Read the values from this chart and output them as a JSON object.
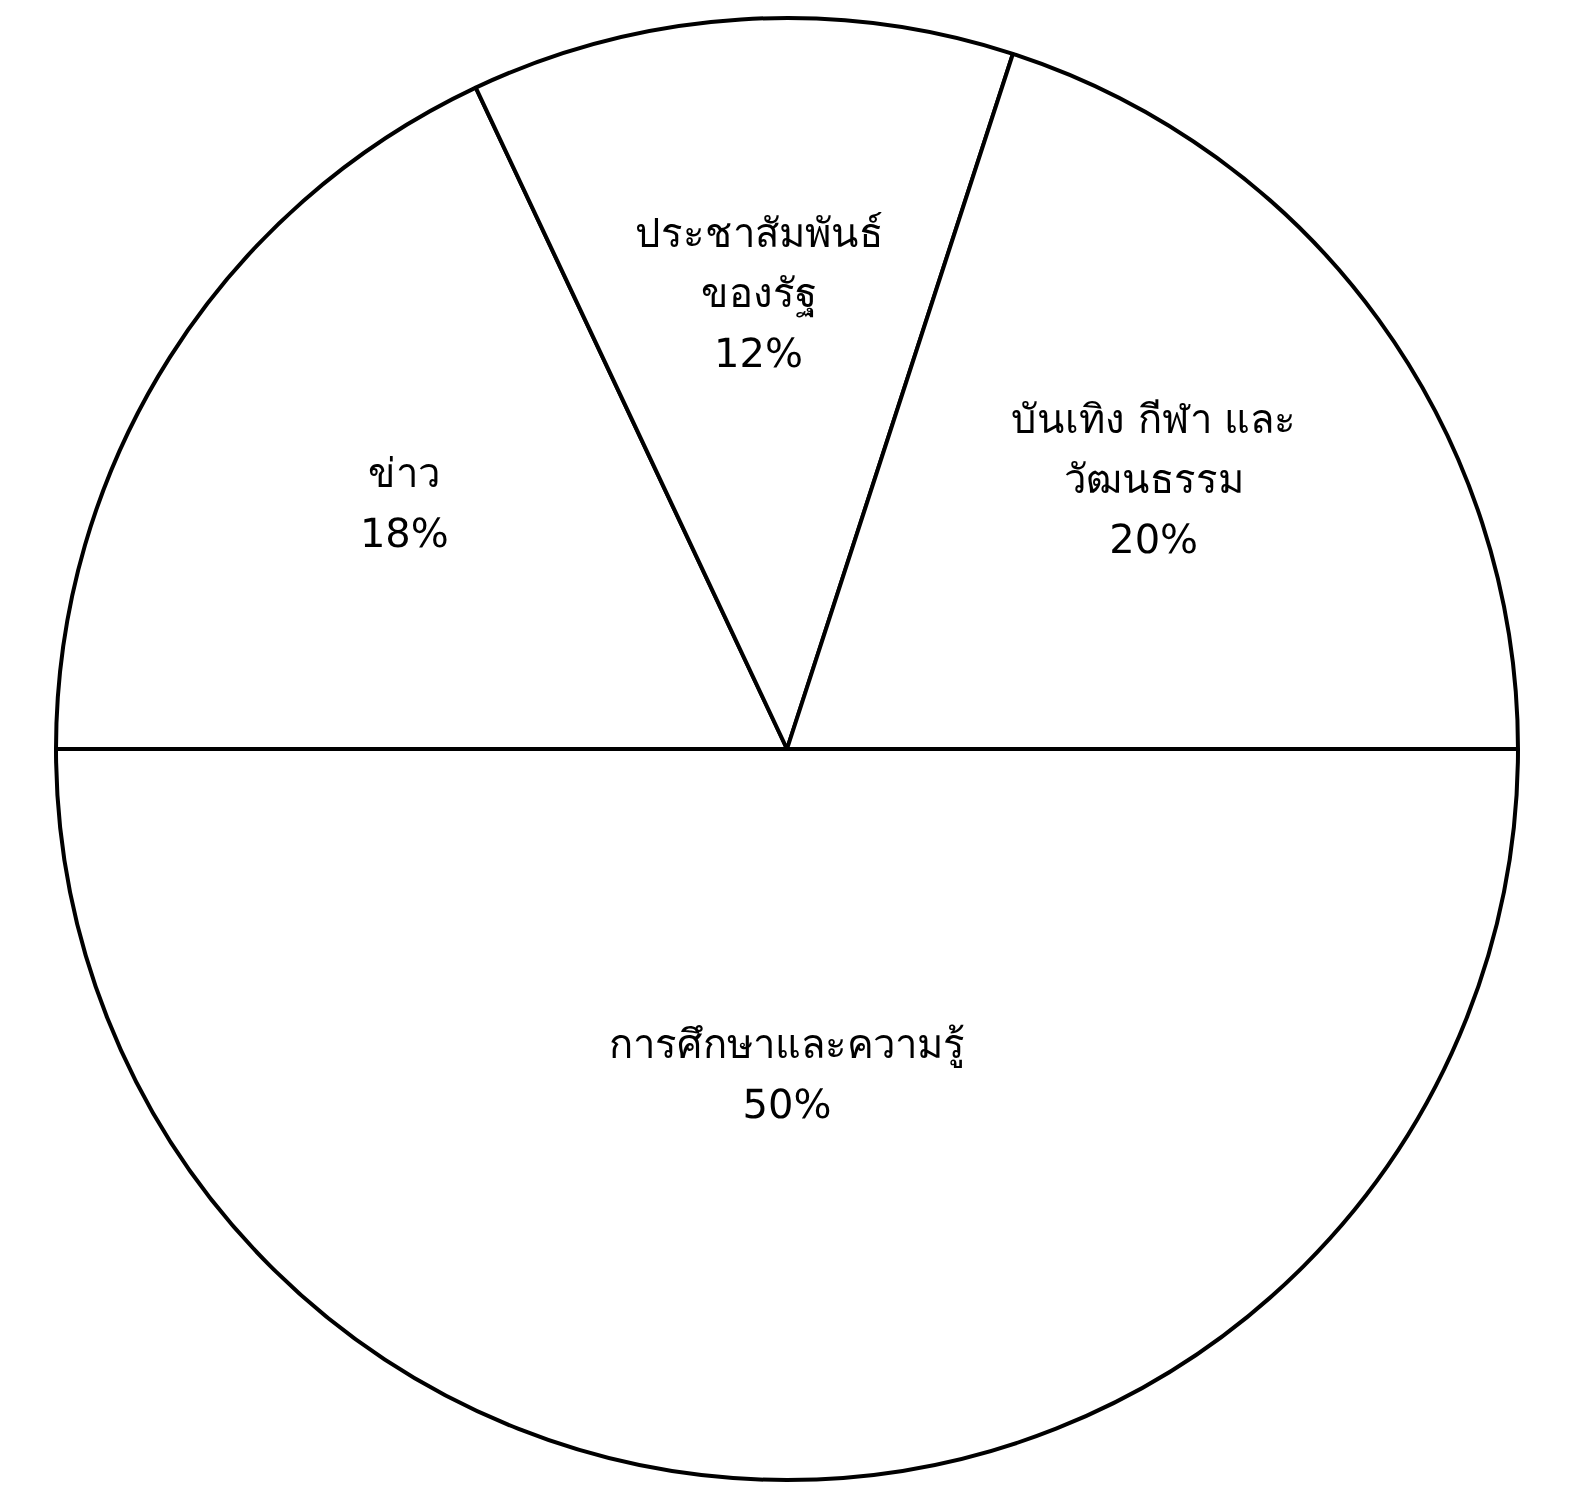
{
  "chart_data": {
    "type": "pie",
    "categories": [
      "การศึกษาและความรู้",
      "ข่าว",
      "ประชาสัมพันธ์ของรัฐ",
      "บันเทิง กีฬา และ วัฒนธรรม"
    ],
    "values": [
      50,
      18,
      12,
      20
    ],
    "colors": [
      "#ffffff",
      "#ffffff",
      "#ffffff",
      "#ffffff"
    ],
    "value_labels": [
      "50%",
      "18%",
      "12%",
      "20%"
    ],
    "legend": false
  }
}
